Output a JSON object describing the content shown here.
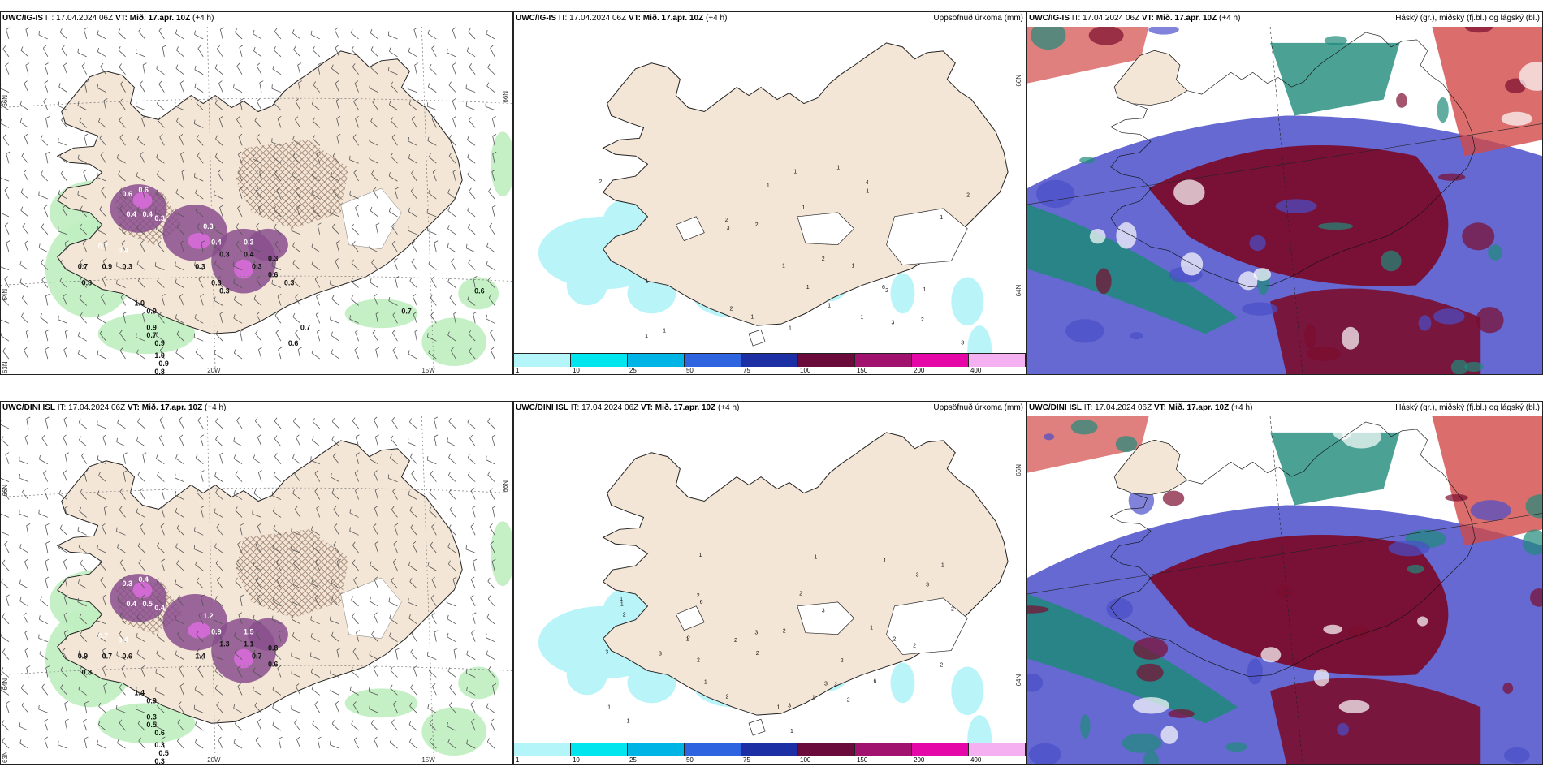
{
  "panels": [
    {
      "id": "tl",
      "kind": "wind",
      "model": "UWC/IG-IS",
      "it": "IT: 17.04.2024 06Z",
      "vt_label": "VT:",
      "vt": "Mið. 17.apr. 10Z",
      "lead": "(+4 h)",
      "right_title": "",
      "grid_labels": {
        "lat66": "66N",
        "lat64": "64N",
        "lat63": "63N",
        "lon20": "20W",
        "lon15": "15W",
        "lat66r": "66N"
      },
      "labels": [
        "0.6",
        "0.6",
        "0.4",
        "0.4",
        "0.3",
        "0.7",
        "0.4",
        "0.3",
        "0.7",
        "0.9",
        "0.8",
        "1.0",
        "0.9",
        "0.7",
        "0.9",
        "1.0",
        "0.9",
        "0.8",
        "0.9",
        "0.3",
        "0.4",
        "0.3",
        "0.3",
        "0.3",
        "0.4",
        "0.3",
        "0.3",
        "0.6",
        "0.3",
        "0.3",
        "0.3",
        "0.7",
        "0.7",
        "0.6",
        "0.6"
      ]
    },
    {
      "id": "tc",
      "kind": "precip",
      "model": "UWC/IG-IS",
      "it": "IT: 17.04.2024 06Z",
      "vt_label": "VT:",
      "vt": "Mið. 17.apr. 10Z",
      "lead": "(+4 h)",
      "right_title": "Uppsöfnuð úrkoma (mm)",
      "grid_labels": {
        "lat66": "66N",
        "lat64": "64N"
      },
      "labels": [
        "1",
        "1",
        "2",
        "1",
        "1",
        "1",
        "2",
        "4",
        "3",
        "2",
        "3",
        "3",
        "1",
        "1",
        "1",
        "2",
        "6",
        "1",
        "1",
        "2",
        "2",
        "1",
        "1",
        "1",
        "2",
        "1",
        "2",
        "1",
        "1",
        "1"
      ]
    },
    {
      "id": "tr",
      "kind": "cloud",
      "model": "UWC/IG-IS",
      "it": "IT: 17.04.2024 06Z",
      "vt_label": "VT:",
      "vt": "Mið. 17.apr. 10Z",
      "lead": "(+4 h)",
      "right_title": "Háský (gr.), miðský (fj.bl.) og lágský (bl.)"
    },
    {
      "id": "bl",
      "kind": "wind",
      "model": "UWC/DINI ISL",
      "it": "IT: 17.04.2024 06Z",
      "vt_label": "VT:",
      "vt": "Mið. 17.apr. 10Z",
      "lead": "(+4 h)",
      "right_title": "",
      "grid_labels": {
        "lat66": "66N",
        "lat64": "64N",
        "lat63": "63N",
        "lon20": "20W",
        "lon15": "15W",
        "lat66r": "66N"
      },
      "labels": [
        "0.3",
        "0.4",
        "0.4",
        "0.5",
        "0.4",
        "0.7",
        "0.4",
        "0.6",
        "0.9",
        "0.7",
        "0.8",
        "1.4",
        "0.3",
        "0.5",
        "0.6",
        "0.3",
        "0.5",
        "0.3",
        "0.9",
        "1.2",
        "0.9",
        "1.3",
        "1.4",
        "1.5",
        "1.1",
        "0.7",
        "0.8",
        "0.6"
      ]
    },
    {
      "id": "bc",
      "kind": "precip",
      "model": "UWC/DINI ISL",
      "it": "IT: 17.04.2024 06Z",
      "vt_label": "VT:",
      "vt": "Mið. 17.apr. 10Z",
      "lead": "(+4 h)",
      "right_title": "Uppsöfnuð úrkoma (mm)",
      "grid_labels": {
        "lat66": "66N",
        "lat64": "64N"
      },
      "labels": [
        "1",
        "2",
        "2",
        "3",
        "2",
        "2",
        "3",
        "1",
        "6",
        "2",
        "2",
        "2",
        "1",
        "2",
        "2",
        "3",
        "2",
        "2",
        "3",
        "2",
        "1",
        "2",
        "1",
        "2",
        "2",
        "1",
        "1",
        "1",
        "3",
        "3",
        "3",
        "2",
        "1",
        "1",
        "1",
        "1",
        "6",
        "1",
        "1",
        "3"
      ]
    },
    {
      "id": "br",
      "kind": "cloud",
      "model": "UWC/DINI ISL",
      "it": "IT: 17.04.2024 06Z",
      "vt_label": "VT:",
      "vt": "Mið. 17.apr. 10Z",
      "lead": "(+4 h)",
      "right_title": "Háský (gr.), miðský (fj.bl.) og lágský (bl.)"
    }
  ],
  "colorbar": {
    "ticks": [
      "1",
      "10",
      "25",
      "50",
      "75",
      "100",
      "150",
      "200",
      "400"
    ],
    "colors": [
      "#b3f5f8",
      "#00e5ee",
      "#00b4e6",
      "#2f64e0",
      "#1c2fa5",
      "#6a0b3c",
      "#a0126e",
      "#e607a8",
      "#f4b0f0"
    ]
  },
  "colors": {
    "land": "#f4e6d6",
    "snow": "#ffffff",
    "green_light": "#bfeec0",
    "green_mid": "#6dd48a",
    "purple": "#8a4d8d",
    "magenta": "#d26ad3",
    "precip_cyan": "#b9f4f8",
    "cloud_high": "#7a0d2e",
    "cloud_mid": "#1f8a7a",
    "cloud_low": "#4a4fc9",
    "cloud_red": "#d24a47"
  }
}
